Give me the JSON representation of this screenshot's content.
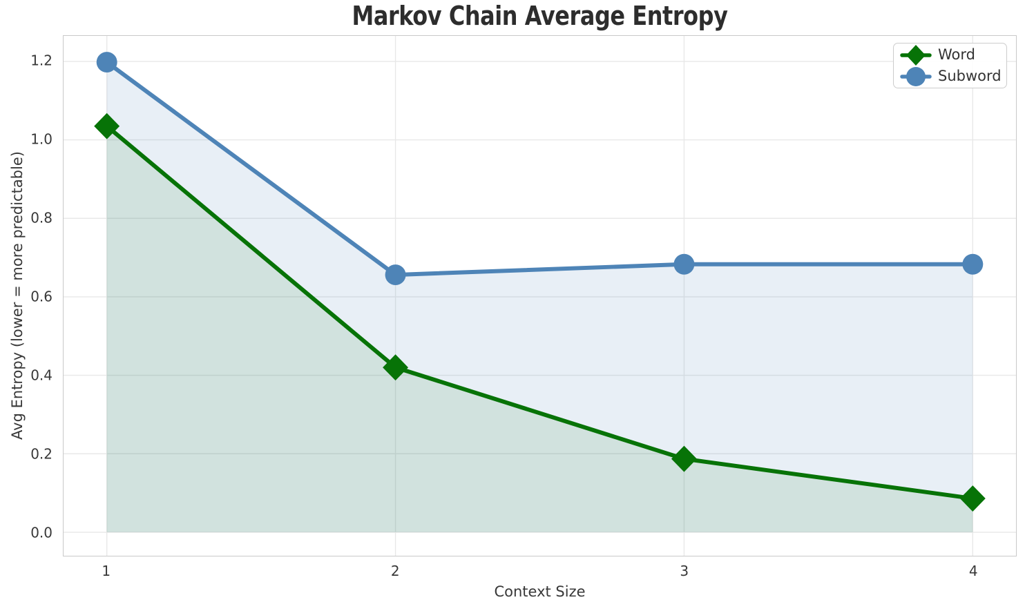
{
  "chart_data": {
    "type": "line",
    "title": "Markov Chain Average Entropy",
    "xlabel": "Context Size",
    "ylabel": "Avg Entropy (lower = more predictable)",
    "x": [
      1,
      2,
      3,
      4
    ],
    "series": [
      {
        "name": "Word",
        "values": [
          1.035,
          0.42,
          0.187,
          0.086
        ],
        "color": "#077307",
        "marker": "diamond",
        "fill_opacity": 0.1
      },
      {
        "name": "Subword",
        "values": [
          1.198,
          0.656,
          0.683,
          0.683
        ],
        "color": "#4e84b7",
        "marker": "circle",
        "fill_opacity": 0.13
      }
    ],
    "area_fill": true,
    "area_baseline": 0.0,
    "xlim": [
      0.85,
      4.15
    ],
    "ylim": [
      -0.06,
      1.265
    ],
    "xtick_values": [
      1,
      2,
      3,
      4
    ],
    "xtick_labels": [
      "1",
      "2",
      "3",
      "4"
    ],
    "ytick_values": [
      0.0,
      0.2,
      0.4,
      0.6,
      0.8,
      1.0,
      1.2
    ],
    "ytick_labels": [
      "0.0",
      "0.2",
      "0.4",
      "0.6",
      "0.8",
      "1.0",
      "1.2"
    ],
    "grid": true,
    "grid_color": "#e8e8e8",
    "spine_color": "#c9c9c9",
    "legend_position": "upper right"
  }
}
